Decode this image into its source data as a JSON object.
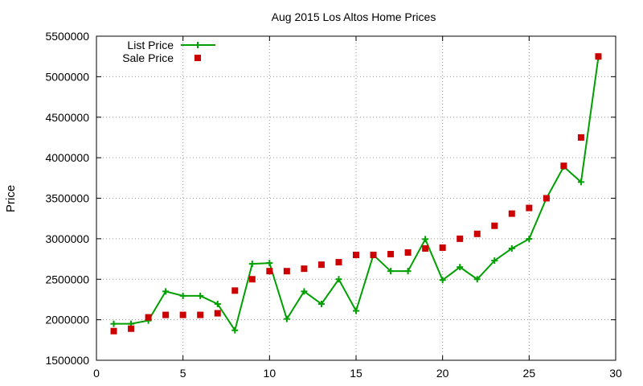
{
  "chart_data": {
    "type": "line",
    "title": "Aug 2015 Los Altos Home Prices",
    "xlabel": "",
    "ylabel": "Price",
    "xlim": [
      0,
      30
    ],
    "ylim": [
      1500000,
      5500000
    ],
    "xticks": [
      "0",
      "5",
      "10",
      "15",
      "20",
      "25",
      "30"
    ],
    "yticks": [
      "1500000",
      "2000000",
      "2500000",
      "3000000",
      "3500000",
      "4000000",
      "4500000",
      "5000000",
      "5500000"
    ],
    "grid": true,
    "legend_position": "top-left",
    "series": [
      {
        "name": "List Price",
        "style": "line-plus",
        "color": "#00a000",
        "x": [
          1,
          2,
          3,
          4,
          5,
          6,
          7,
          8,
          9,
          10,
          11,
          12,
          13,
          14,
          15,
          16,
          17,
          18,
          19,
          20,
          21,
          22,
          23,
          24,
          25,
          26,
          27,
          28,
          29
        ],
        "values": [
          1950000,
          1950000,
          1990000,
          2350000,
          2295000,
          2295000,
          2195000,
          1870000,
          2690000,
          2700000,
          2010000,
          2350000,
          2195000,
          2500000,
          2110000,
          2800000,
          2600000,
          2600000,
          2995000,
          2490000,
          2650000,
          2500000,
          2730000,
          2880000,
          2998000,
          3500000,
          3890000,
          3700000,
          5240000
        ]
      },
      {
        "name": "Sale Price",
        "style": "square",
        "color": "#cc0000",
        "x": [
          1,
          2,
          3,
          4,
          5,
          6,
          7,
          8,
          9,
          10,
          11,
          12,
          13,
          14,
          15,
          16,
          17,
          18,
          19,
          20,
          21,
          22,
          23,
          24,
          25,
          26,
          27,
          28,
          29
        ],
        "values": [
          1860000,
          1890000,
          2030000,
          2060000,
          2060000,
          2060000,
          2080000,
          2360000,
          2500000,
          2600000,
          2600000,
          2630000,
          2680000,
          2710000,
          2800000,
          2800000,
          2810000,
          2830000,
          2880000,
          2890000,
          3000000,
          3060000,
          3160000,
          3310000,
          3380000,
          3500000,
          3900000,
          4250000,
          5250000
        ]
      }
    ]
  }
}
